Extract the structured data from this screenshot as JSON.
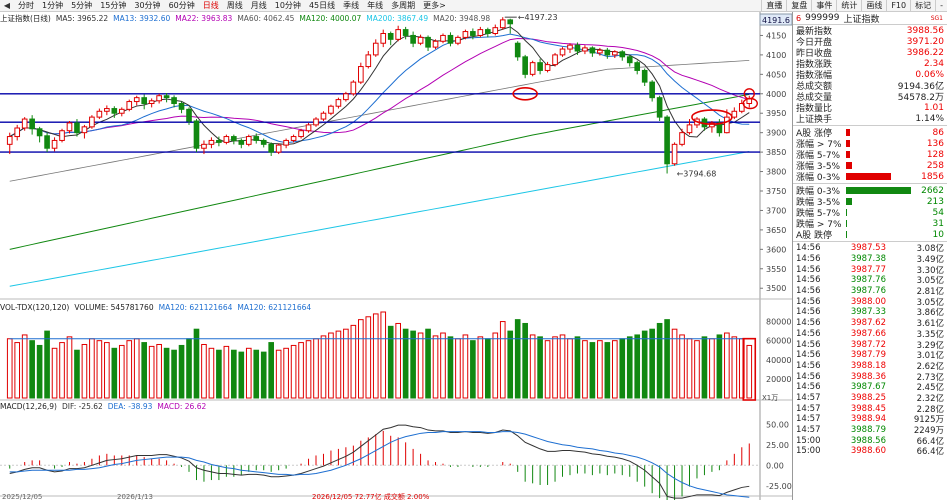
{
  "toolbar": {
    "timeframes": [
      "分时",
      "1分钟",
      "5分钟",
      "15分钟",
      "30分钟",
      "60分钟",
      "日线",
      "周线",
      "月线",
      "10分钟",
      "45日线",
      "季线",
      "年线",
      "多周期",
      "更多>"
    ],
    "active_index": 6
  },
  "right_toolbar": [
    "直播",
    "复盘",
    "事件",
    "统计",
    "画线",
    "F10",
    "标记",
    "-"
  ],
  "legend": {
    "price": [
      {
        "text": "上证指数(日线)",
        "color": "#222"
      },
      {
        "text": "MA5: 3965.22",
        "color": "#333"
      },
      {
        "text": "MA13: 3932.60",
        "color": "#1e6fd1"
      },
      {
        "text": "MA22: 3963.83",
        "color": "#b300b3"
      },
      {
        "text": "MA60: 4062.45",
        "color": "#555"
      },
      {
        "text": "MA120: 4000.07",
        "color": "#118811"
      },
      {
        "text": "MA200: 3867.49",
        "color": "#1cc6e6"
      },
      {
        "text": "MA20: 3948.98",
        "color": "#555"
      }
    ],
    "volume": [
      {
        "text": "VOL-TDX(120,120)",
        "color": "#222"
      },
      {
        "text": "VOLUME: 545781760",
        "color": "#222"
      },
      {
        "text": "MA120: 621121664",
        "color": "#1e6fd1"
      },
      {
        "text": "MA120: 621121664",
        "color": "#1e6fd1"
      }
    ],
    "macd": [
      {
        "text": "MACD(12,26,9)",
        "color": "#222"
      },
      {
        "text": "DIF: -25.62",
        "color": "#333"
      },
      {
        "text": "DEA: -38.93",
        "color": "#1e6fd1"
      },
      {
        "text": "MACD: 26.62",
        "color": "#b300b3"
      }
    ]
  },
  "price_axis": {
    "ticks": [
      4150,
      4100,
      4050,
      4000,
      3950,
      3900,
      3850,
      3800,
      3750,
      3700,
      3650,
      3600,
      3550,
      3500
    ],
    "top_label": "4191.6"
  },
  "volume_axis": {
    "ticks": [
      "80000",
      "60000",
      "40000",
      "20000"
    ],
    "unit": "X1万"
  },
  "macd_axis": {
    "ticks": [
      "50.00",
      "25.00",
      "0.00",
      "-25.00"
    ]
  },
  "annotations": {
    "high": "4197.23",
    "low": "3794.68"
  },
  "date_labels": [
    "2025/12/05",
    "2026/1/13",
    "2026/12/05 72.77亿 成交额 2.00%"
  ],
  "right_panel": {
    "badge": "6",
    "code": "999999",
    "name": "上证指数",
    "tag": "SG1",
    "stats": [
      {
        "label": "最新指数",
        "value": "3988.56",
        "cls": "red"
      },
      {
        "label": "今日开盘",
        "value": "3971.20",
        "cls": "red"
      },
      {
        "label": "昨日收盘",
        "value": "3986.22",
        "cls": "red"
      },
      {
        "label": "指数涨跌",
        "value": "2.34",
        "cls": "red"
      },
      {
        "label": "指数涨幅",
        "value": "0.06%",
        "cls": "red"
      },
      {
        "label": "总成交额",
        "value": "9194.36亿",
        "cls": ""
      },
      {
        "label": "总成交量",
        "value": "54578.2万",
        "cls": ""
      },
      {
        "label": "指数量比",
        "value": "1.01",
        "cls": "red"
      },
      {
        "label": "上证换手",
        "value": "1.14%",
        "cls": ""
      }
    ],
    "up_dist": [
      {
        "label": "A股 涨停",
        "value": "86",
        "bar": 3
      },
      {
        "label": "涨幅 > 7%",
        "value": "136",
        "bar": 3
      },
      {
        "label": "涨幅 5-7%",
        "value": "128",
        "bar": 3
      },
      {
        "label": "涨幅 3-5%",
        "value": "258",
        "bar": 5
      },
      {
        "label": "涨幅 0-3%",
        "value": "1856",
        "bar": 36
      }
    ],
    "down_dist": [
      {
        "label": "跌幅 0-3%",
        "value": "2662",
        "bar": 52
      },
      {
        "label": "跌幅 3-5%",
        "value": "213",
        "bar": 5
      },
      {
        "label": "跌幅 5-7%",
        "value": "54",
        "bar": 1
      },
      {
        "label": "跌幅 > 7%",
        "value": "31",
        "bar": 1
      },
      {
        "label": "A股 跌停",
        "value": "10",
        "bar": 1
      }
    ],
    "ticks": [
      {
        "t": "14:56",
        "p": "3987.53",
        "v": "3.08亿",
        "dir": "up"
      },
      {
        "t": "14:56",
        "p": "3987.38",
        "v": "3.49亿",
        "dir": "down"
      },
      {
        "t": "14:56",
        "p": "3987.77",
        "v": "3.30亿",
        "dir": "up"
      },
      {
        "t": "14:56",
        "p": "3987.76",
        "v": "3.05亿",
        "dir": "down"
      },
      {
        "t": "14:56",
        "p": "3987.76",
        "v": "2.81亿",
        "dir": "down"
      },
      {
        "t": "14:56",
        "p": "3988.00",
        "v": "3.05亿",
        "dir": "up"
      },
      {
        "t": "14:56",
        "p": "3987.33",
        "v": "3.86亿",
        "dir": "down"
      },
      {
        "t": "14:56",
        "p": "3987.62",
        "v": "3.61亿",
        "dir": "up"
      },
      {
        "t": "14:56",
        "p": "3987.66",
        "v": "3.35亿",
        "dir": "up"
      },
      {
        "t": "14:56",
        "p": "3987.72",
        "v": "3.29亿",
        "dir": "up"
      },
      {
        "t": "14:56",
        "p": "3987.79",
        "v": "3.01亿",
        "dir": "up"
      },
      {
        "t": "14:56",
        "p": "3988.18",
        "v": "2.62亿",
        "dir": "up"
      },
      {
        "t": "14:56",
        "p": "3988.36",
        "v": "2.73亿",
        "dir": "up"
      },
      {
        "t": "14:56",
        "p": "3987.67",
        "v": "2.45亿",
        "dir": "down"
      },
      {
        "t": "14:57",
        "p": "3988.25",
        "v": "2.32亿",
        "dir": "up"
      },
      {
        "t": "14:57",
        "p": "3988.45",
        "v": "2.28亿",
        "dir": "up"
      },
      {
        "t": "14:57",
        "p": "3988.94",
        "v": "9125万",
        "dir": "up"
      },
      {
        "t": "14:57",
        "p": "3988.79",
        "v": "2249万",
        "dir": "down"
      },
      {
        "t": "15:00",
        "p": "3988.56",
        "v": "66.4亿",
        "dir": "down"
      },
      {
        "t": "15:00",
        "p": "3988.60",
        "v": "66.4亿",
        "dir": "up"
      }
    ]
  },
  "colors": {
    "up": "#e00000",
    "down": "#118811",
    "ma5": "#333333",
    "ma13": "#1e6fd1",
    "ma22": "#b300b3",
    "ma60": "#777777",
    "ma120": "#118811",
    "ma200": "#1cc6e6",
    "level_line": "#0000aa",
    "marker": "#e00000"
  },
  "chart_data": {
    "type": "candlestick",
    "levels": [
      4000,
      3927,
      3850
    ],
    "candles": [
      [
        3870,
        3890,
        3845,
        3900
      ],
      [
        3890,
        3912,
        3880,
        3920
      ],
      [
        3912,
        3935,
        3905,
        3940
      ],
      [
        3935,
        3910,
        3895,
        3945
      ],
      [
        3910,
        3892,
        3875,
        3915
      ],
      [
        3892,
        3860,
        3850,
        3900
      ],
      [
        3860,
        3880,
        3852,
        3888
      ],
      [
        3880,
        3905,
        3875,
        3910
      ],
      [
        3905,
        3925,
        3898,
        3930
      ],
      [
        3925,
        3900,
        3890,
        3935
      ],
      [
        3900,
        3915,
        3885,
        3920
      ],
      [
        3915,
        3940,
        3910,
        3945
      ],
      [
        3940,
        3955,
        3935,
        3962
      ],
      [
        3955,
        3962,
        3945,
        3970
      ],
      [
        3962,
        3950,
        3938,
        3968
      ],
      [
        3950,
        3960,
        3942,
        3965
      ],
      [
        3960,
        3980,
        3955,
        3985
      ],
      [
        3980,
        3990,
        3970,
        3995
      ],
      [
        3990,
        3975,
        3960,
        3998
      ],
      [
        3975,
        3982,
        3965,
        3988
      ],
      [
        3982,
        3995,
        3975,
        4000
      ],
      [
        3995,
        3990,
        3978,
        4002
      ],
      [
        3990,
        3975,
        3965,
        3996
      ],
      [
        3975,
        3960,
        3950,
        3980
      ],
      [
        3960,
        3930,
        3920,
        3965
      ],
      [
        3930,
        3860,
        3850,
        3935
      ],
      [
        3860,
        3870,
        3845,
        3880
      ],
      [
        3870,
        3880,
        3860,
        3888
      ],
      [
        3880,
        3875,
        3865,
        3890
      ],
      [
        3875,
        3890,
        3870,
        3895
      ],
      [
        3890,
        3880,
        3870,
        3895
      ],
      [
        3880,
        3870,
        3860,
        3885
      ],
      [
        3870,
        3890,
        3865,
        3895
      ],
      [
        3890,
        3880,
        3872,
        3898
      ],
      [
        3880,
        3870,
        3862,
        3885
      ],
      [
        3870,
        3850,
        3840,
        3875
      ],
      [
        3850,
        3868,
        3845,
        3872
      ],
      [
        3868,
        3880,
        3860,
        3885
      ],
      [
        3880,
        3890,
        3875,
        3895
      ],
      [
        3890,
        3905,
        3885,
        3910
      ],
      [
        3905,
        3920,
        3900,
        3925
      ],
      [
        3920,
        3935,
        3915,
        3940
      ],
      [
        3935,
        3950,
        3930,
        3955
      ],
      [
        3950,
        3968,
        3945,
        3972
      ],
      [
        3968,
        3985,
        3962,
        3990
      ],
      [
        3985,
        4000,
        3980,
        4005
      ],
      [
        4000,
        4030,
        3995,
        4035
      ],
      [
        4030,
        4070,
        4025,
        4080
      ],
      [
        4070,
        4100,
        4065,
        4110
      ],
      [
        4100,
        4130,
        4095,
        4140
      ],
      [
        4130,
        4155,
        4120,
        4165
      ],
      [
        4155,
        4140,
        4125,
        4160
      ],
      [
        4140,
        4165,
        4135,
        4175
      ],
      [
        4165,
        4150,
        4140,
        4172
      ],
      [
        4150,
        4130,
        4120,
        4160
      ],
      [
        4130,
        4145,
        4125,
        4152
      ],
      [
        4145,
        4120,
        4110,
        4150
      ],
      [
        4120,
        4135,
        4115,
        4140
      ],
      [
        4135,
        4150,
        4130,
        4155
      ],
      [
        4150,
        4130,
        4122,
        4158
      ],
      [
        4130,
        4145,
        4125,
        4150
      ],
      [
        4145,
        4160,
        4140,
        4165
      ],
      [
        4160,
        4150,
        4140,
        4168
      ],
      [
        4150,
        4165,
        4145,
        4172
      ],
      [
        4165,
        4155,
        4145,
        4170
      ],
      [
        4155,
        4170,
        4150,
        4178
      ],
      [
        4170,
        4190,
        4165,
        4197
      ],
      [
        4190,
        4180,
        4155,
        4193
      ],
      [
        4130,
        4095,
        4085,
        4135
      ],
      [
        4095,
        4050,
        4040,
        4100
      ],
      [
        4050,
        4080,
        4045,
        4085
      ],
      [
        4080,
        4060,
        4050,
        4090
      ],
      [
        4060,
        4075,
        4055,
        4082
      ],
      [
        4075,
        4100,
        4070,
        4105
      ],
      [
        4100,
        4115,
        4095,
        4120
      ],
      [
        4115,
        4125,
        4105,
        4130
      ],
      [
        4125,
        4110,
        4100,
        4132
      ],
      [
        4110,
        4118,
        4102,
        4125
      ],
      [
        4118,
        4105,
        4095,
        4122
      ],
      [
        4105,
        4112,
        4098,
        4118
      ],
      [
        4112,
        4100,
        4090,
        4118
      ],
      [
        4100,
        4108,
        4092,
        4112
      ],
      [
        4108,
        4095,
        4085,
        4112
      ],
      [
        4095,
        4080,
        4070,
        4100
      ],
      [
        4080,
        4060,
        4050,
        4085
      ],
      [
        4060,
        4030,
        4020,
        4065
      ],
      [
        4030,
        3990,
        3980,
        4035
      ],
      [
        3990,
        3940,
        3930,
        3995
      ],
      [
        3940,
        3820,
        3795,
        3945
      ],
      [
        3820,
        3870,
        3815,
        3875
      ],
      [
        3870,
        3900,
        3865,
        3910
      ],
      [
        3900,
        3920,
        3895,
        3935
      ],
      [
        3920,
        3935,
        3912,
        3940
      ],
      [
        3935,
        3915,
        3905,
        3940
      ],
      [
        3915,
        3925,
        3900,
        3930
      ],
      [
        3925,
        3900,
        3890,
        3935
      ],
      [
        3900,
        3940,
        3898,
        3960
      ],
      [
        3940,
        3955,
        3935,
        3965
      ],
      [
        3955,
        3975,
        3950,
        3985
      ],
      [
        3975,
        3988,
        3965,
        3995
      ]
    ],
    "volume": [
      62000,
      58000,
      66000,
      60000,
      55000,
      70000,
      52000,
      58000,
      64000,
      50000,
      56000,
      62000,
      60000,
      58000,
      52000,
      55000,
      60000,
      62000,
      58000,
      54000,
      56000,
      52000,
      50000,
      55000,
      62000,
      72000,
      56000,
      52000,
      50000,
      54000,
      50000,
      48000,
      52000,
      50000,
      48000,
      58000,
      50000,
      52000,
      55000,
      58000,
      60000,
      62000,
      65000,
      68000,
      70000,
      72000,
      76000,
      82000,
      85000,
      88000,
      90000,
      75000,
      78000,
      72000,
      70000,
      68000,
      72000,
      65000,
      68000,
      64000,
      62000,
      66000,
      60000,
      64000,
      62000,
      68000,
      80000,
      70000,
      82000,
      78000,
      66000,
      64000,
      60000,
      64000,
      66000,
      62000,
      64000,
      60000,
      58000,
      60000,
      58000,
      60000,
      62000,
      64000,
      66000,
      70000,
      72000,
      78000,
      82000,
      72000,
      66000,
      62000,
      60000,
      64000,
      62000,
      66000,
      68000,
      64000,
      62000,
      55000
    ],
    "macd_dif": [
      -10,
      -8,
      -5,
      -3,
      -3,
      -6,
      -8,
      -7,
      -4,
      -4,
      -3,
      0,
      3,
      6,
      7,
      8,
      10,
      12,
      12,
      12,
      13,
      13,
      11,
      9,
      5,
      -3,
      -6,
      -8,
      -10,
      -10,
      -11,
      -12,
      -11,
      -11,
      -12,
      -14,
      -14,
      -13,
      -12,
      -10,
      -7,
      -4,
      -1,
      3,
      7,
      11,
      16,
      23,
      30,
      37,
      44,
      46,
      49,
      49,
      47,
      46,
      43,
      42,
      42,
      40,
      40,
      41,
      40,
      40,
      39,
      40,
      43,
      42,
      36,
      28,
      24,
      20,
      17,
      17,
      18,
      18,
      17,
      16,
      14,
      13,
      11,
      10,
      8,
      5,
      0,
      -6,
      -14,
      -22,
      -38,
      -40,
      -40,
      -38,
      -36,
      -36,
      -36,
      -37,
      -33,
      -30,
      -27,
      -25.62
    ],
    "macd_dea": [
      -8,
      -8,
      -7,
      -6,
      -6,
      -6,
      -6,
      -6,
      -6,
      -5,
      -5,
      -4,
      -3,
      -1,
      1,
      2,
      4,
      6,
      7,
      8,
      9,
      10,
      10,
      10,
      9,
      6,
      4,
      1,
      -1,
      -3,
      -4,
      -6,
      -7,
      -8,
      -9,
      -10,
      -11,
      -11,
      -12,
      -11,
      -11,
      -10,
      -8,
      -6,
      -3,
      0,
      4,
      8,
      13,
      18,
      23,
      28,
      32,
      35,
      37,
      39,
      40,
      40,
      41,
      41,
      41,
      41,
      41,
      41,
      40,
      40,
      41,
      41,
      40,
      38,
      35,
      32,
      29,
      27,
      25,
      24,
      22,
      21,
      20,
      18,
      17,
      15,
      14,
      12,
      10,
      7,
      3,
      -2,
      -10,
      -16,
      -21,
      -25,
      -28,
      -30,
      -32,
      -34,
      -36,
      -37,
      -38,
      -38.93
    ]
  }
}
